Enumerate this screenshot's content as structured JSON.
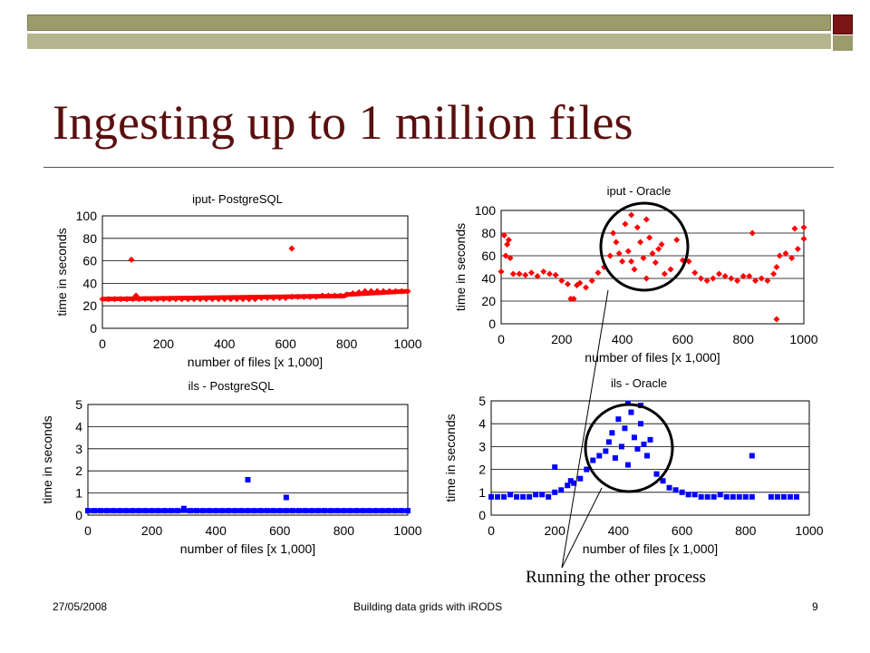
{
  "slide": {
    "title": "Ingesting up to 1 million files",
    "annotation": "Running the other process",
    "footer_left": "27/05/2008",
    "footer_center": "Building data grids with iRODS",
    "footer_right": "9",
    "colors": {
      "title": "#5a0f0f",
      "bar_dark": "#9b9b6b",
      "bar_light": "#b5b58d",
      "accent_square": "#7b1414"
    }
  },
  "chart_data": [
    {
      "type": "scatter",
      "title": "iput- PostgreSQL",
      "xlabel": "number of files [x 1,000]",
      "ylabel": "time in seconds",
      "xlim": [
        0,
        1000
      ],
      "ylim": [
        0,
        100
      ],
      "xticks": [
        "0",
        "200",
        "400",
        "600",
        "800",
        "1000"
      ],
      "yticks": [
        "0",
        "20",
        "40",
        "60",
        "80",
        "100"
      ],
      "grid": true,
      "color": "#ff0000",
      "marker": "diamond",
      "x": [
        0,
        20,
        40,
        60,
        80,
        100,
        120,
        140,
        160,
        180,
        200,
        220,
        240,
        260,
        280,
        300,
        320,
        340,
        360,
        380,
        400,
        420,
        440,
        460,
        480,
        500,
        520,
        540,
        560,
        580,
        600,
        620,
        640,
        660,
        680,
        700,
        720,
        740,
        760,
        780,
        800,
        820,
        840,
        860,
        880,
        900,
        920,
        940,
        960,
        980,
        1000,
        95,
        110,
        620
      ],
      "y": [
        26,
        26,
        26,
        26,
        26,
        26,
        26,
        26,
        26,
        26,
        26,
        26,
        26,
        26,
        26,
        26,
        26,
        26,
        26,
        26,
        26,
        26,
        26,
        26,
        26,
        26,
        27,
        27,
        27,
        27,
        27,
        28,
        28,
        28,
        28,
        28,
        29,
        29,
        29,
        29,
        30,
        31,
        32,
        33,
        33,
        33,
        33,
        33,
        33,
        33,
        33,
        61,
        29,
        71
      ]
    },
    {
      "type": "scatter",
      "title": "iput - Oracle",
      "xlabel": "number of files [x 1,000]",
      "ylabel": "time in seconds",
      "xlim": [
        0,
        1000
      ],
      "ylim": [
        0,
        100
      ],
      "xticks": [
        "0",
        "200",
        "400",
        "600",
        "800",
        "1000"
      ],
      "yticks": [
        "0",
        "20",
        "40",
        "60",
        "80",
        "100"
      ],
      "grid": true,
      "color": "#ff0000",
      "marker": "diamond",
      "x": [
        0,
        10,
        20,
        30,
        40,
        60,
        80,
        100,
        120,
        140,
        160,
        180,
        200,
        220,
        230,
        240,
        250,
        260,
        280,
        300,
        320,
        340,
        360,
        370,
        380,
        390,
        400,
        410,
        420,
        430,
        440,
        450,
        460,
        470,
        480,
        490,
        500,
        510,
        520,
        530,
        540,
        560,
        580,
        600,
        620,
        640,
        660,
        680,
        700,
        720,
        740,
        760,
        780,
        800,
        820,
        840,
        860,
        880,
        900,
        910,
        920,
        940,
        960,
        980,
        1000,
        15,
        25,
        910,
        1000,
        830,
        970,
        430,
        480
      ],
      "y": [
        46,
        78,
        70,
        58,
        44,
        44,
        43,
        45,
        42,
        46,
        44,
        43,
        38,
        35,
        22,
        22,
        34,
        36,
        32,
        38,
        45,
        50,
        60,
        80,
        72,
        62,
        55,
        88,
        64,
        55,
        48,
        85,
        72,
        58,
        40,
        76,
        62,
        54,
        66,
        70,
        44,
        48,
        74,
        56,
        55,
        45,
        40,
        38,
        40,
        44,
        42,
        40,
        38,
        42,
        42,
        38,
        40,
        38,
        44,
        50,
        60,
        62,
        58,
        66,
        75,
        60,
        74,
        4,
        85,
        80,
        84,
        96,
        92
      ]
    },
    {
      "type": "scatter",
      "title": "ils -  PostgreSQL",
      "xlabel": "number of files [x 1,000]",
      "ylabel": "time in seconds",
      "xlim": [
        0,
        1000
      ],
      "ylim": [
        0,
        5
      ],
      "xticks": [
        "0",
        "200",
        "400",
        "600",
        "800",
        "1000"
      ],
      "yticks": [
        "0",
        "1",
        "2",
        "3",
        "4",
        "5"
      ],
      "grid": true,
      "color": "#0000ff",
      "marker": "square",
      "x": [
        0,
        20,
        40,
        60,
        80,
        100,
        120,
        140,
        160,
        180,
        200,
        220,
        240,
        260,
        280,
        300,
        320,
        340,
        360,
        380,
        400,
        420,
        440,
        460,
        480,
        500,
        520,
        540,
        560,
        580,
        600,
        620,
        640,
        660,
        680,
        700,
        720,
        740,
        760,
        780,
        800,
        820,
        840,
        860,
        880,
        900,
        920,
        940,
        960,
        980,
        1000,
        500,
        620
      ],
      "y": [
        0.2,
        0.2,
        0.2,
        0.2,
        0.2,
        0.2,
        0.2,
        0.2,
        0.2,
        0.2,
        0.2,
        0.2,
        0.2,
        0.2,
        0.2,
        0.3,
        0.2,
        0.2,
        0.2,
        0.2,
        0.2,
        0.2,
        0.2,
        0.2,
        0.2,
        0.2,
        0.2,
        0.2,
        0.2,
        0.2,
        0.2,
        0.2,
        0.2,
        0.2,
        0.2,
        0.2,
        0.2,
        0.2,
        0.2,
        0.2,
        0.2,
        0.2,
        0.2,
        0.2,
        0.2,
        0.2,
        0.2,
        0.2,
        0.2,
        0.2,
        0.2,
        1.6,
        0.8
      ]
    },
    {
      "type": "scatter",
      "title": "ils -  Oracle",
      "xlabel": "number of files [x 1,000]",
      "ylabel": "time in seconds",
      "xlim": [
        0,
        1000
      ],
      "ylim": [
        0,
        5
      ],
      "xticks": [
        "0",
        "200",
        "400",
        "600",
        "800",
        "1000"
      ],
      "yticks": [
        "0",
        "1",
        "2",
        "3",
        "4",
        "5"
      ],
      "grid": true,
      "color": "#0000ff",
      "marker": "square",
      "x": [
        0,
        20,
        40,
        60,
        80,
        100,
        120,
        140,
        160,
        180,
        200,
        220,
        240,
        260,
        280,
        300,
        320,
        340,
        360,
        370,
        380,
        390,
        400,
        410,
        420,
        430,
        440,
        450,
        460,
        470,
        480,
        490,
        500,
        520,
        540,
        560,
        580,
        600,
        620,
        640,
        660,
        680,
        700,
        720,
        740,
        760,
        780,
        800,
        820,
        880,
        900,
        920,
        940,
        960,
        200,
        250,
        820,
        430,
        470
      ],
      "y": [
        0.8,
        0.8,
        0.8,
        0.9,
        0.8,
        0.8,
        0.8,
        0.9,
        0.9,
        0.8,
        1.0,
        1.1,
        1.3,
        1.4,
        1.6,
        2.0,
        2.4,
        2.6,
        2.8,
        3.2,
        3.6,
        2.5,
        4.2,
        3.0,
        3.8,
        2.2,
        4.5,
        3.4,
        2.9,
        4.0,
        3.1,
        2.6,
        3.3,
        1.8,
        1.5,
        1.2,
        1.1,
        1.0,
        0.9,
        0.9,
        0.8,
        0.8,
        0.8,
        0.9,
        0.8,
        0.8,
        0.8,
        0.8,
        0.8,
        0.8,
        0.8,
        0.8,
        0.8,
        0.8,
        2.1,
        1.5,
        2.6,
        4.9,
        4.8
      ]
    }
  ]
}
